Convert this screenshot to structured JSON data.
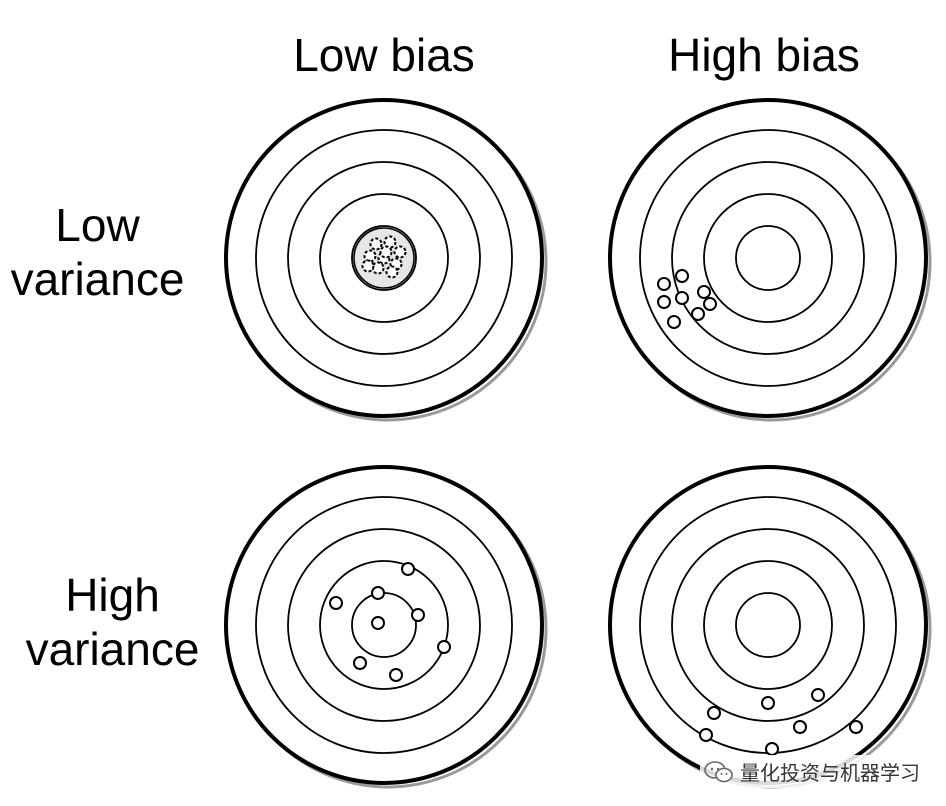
{
  "columns": [
    "Low bias",
    "High bias"
  ],
  "rows": [
    {
      "line1": "Low",
      "line2": "variance"
    },
    {
      "line1": "High",
      "line2": "variance"
    }
  ],
  "targets": [
    {
      "id": "low-bias-low-variance",
      "bias": "low",
      "variance": "low"
    },
    {
      "id": "high-bias-low-variance",
      "bias": "high",
      "variance": "low"
    },
    {
      "id": "low-bias-high-variance",
      "bias": "low",
      "variance": "high"
    },
    {
      "id": "high-bias-high-variance",
      "bias": "high",
      "variance": "high"
    }
  ],
  "watermark": {
    "text": "量化投资与机器学习",
    "icon": "wechat-icon"
  },
  "colors": {
    "stroke": "#000000",
    "background": "#ffffff"
  }
}
